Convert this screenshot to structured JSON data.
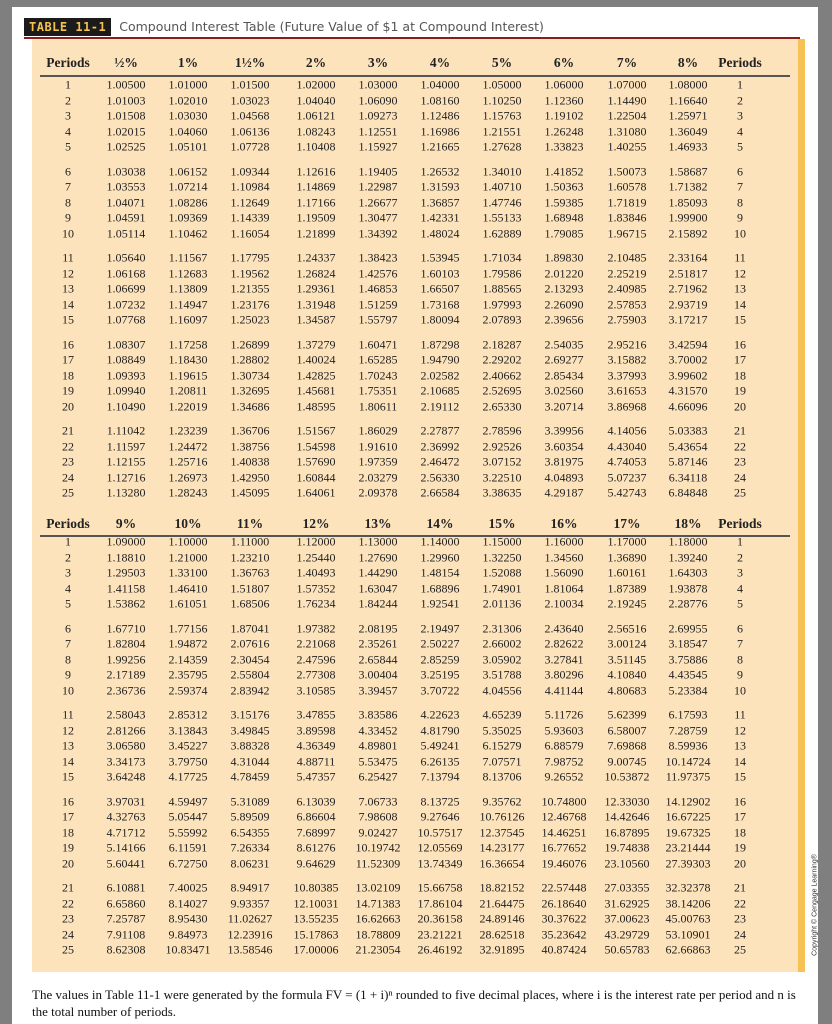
{
  "header": {
    "label": "TABLE 11-1",
    "title": "Compound Interest Table (Future Value of $1 at Compound Interest)"
  },
  "colors": {
    "cream": "#fde3bc",
    "accent_strip": "#f6c255",
    "rule": "#8c1c1c",
    "label_bg": "#1b1b1b",
    "label_text": "#f3c24f"
  },
  "sections": [
    {
      "columns": [
        "Periods",
        "½%",
        "1%",
        "1½%",
        "2%",
        "3%",
        "4%",
        "5%",
        "6%",
        "7%",
        "8%",
        "Periods"
      ],
      "rows": [
        [
          "1",
          "1.00500",
          "1.01000",
          "1.01500",
          "1.02000",
          "1.03000",
          "1.04000",
          "1.05000",
          "1.06000",
          "1.07000",
          "1.08000",
          "1"
        ],
        [
          "2",
          "1.01003",
          "1.02010",
          "1.03023",
          "1.04040",
          "1.06090",
          "1.08160",
          "1.10250",
          "1.12360",
          "1.14490",
          "1.16640",
          "2"
        ],
        [
          "3",
          "1.01508",
          "1.03030",
          "1.04568",
          "1.06121",
          "1.09273",
          "1.12486",
          "1.15763",
          "1.19102",
          "1.22504",
          "1.25971",
          "3"
        ],
        [
          "4",
          "1.02015",
          "1.04060",
          "1.06136",
          "1.08243",
          "1.12551",
          "1.16986",
          "1.21551",
          "1.26248",
          "1.31080",
          "1.36049",
          "4"
        ],
        [
          "5",
          "1.02525",
          "1.05101",
          "1.07728",
          "1.10408",
          "1.15927",
          "1.21665",
          "1.27628",
          "1.33823",
          "1.40255",
          "1.46933",
          "5"
        ],
        [
          "6",
          "1.03038",
          "1.06152",
          "1.09344",
          "1.12616",
          "1.19405",
          "1.26532",
          "1.34010",
          "1.41852",
          "1.50073",
          "1.58687",
          "6"
        ],
        [
          "7",
          "1.03553",
          "1.07214",
          "1.10984",
          "1.14869",
          "1.22987",
          "1.31593",
          "1.40710",
          "1.50363",
          "1.60578",
          "1.71382",
          "7"
        ],
        [
          "8",
          "1.04071",
          "1.08286",
          "1.12649",
          "1.17166",
          "1.26677",
          "1.36857",
          "1.47746",
          "1.59385",
          "1.71819",
          "1.85093",
          "8"
        ],
        [
          "9",
          "1.04591",
          "1.09369",
          "1.14339",
          "1.19509",
          "1.30477",
          "1.42331",
          "1.55133",
          "1.68948",
          "1.83846",
          "1.99900",
          "9"
        ],
        [
          "10",
          "1.05114",
          "1.10462",
          "1.16054",
          "1.21899",
          "1.34392",
          "1.48024",
          "1.62889",
          "1.79085",
          "1.96715",
          "2.15892",
          "10"
        ],
        [
          "11",
          "1.05640",
          "1.11567",
          "1.17795",
          "1.24337",
          "1.38423",
          "1.53945",
          "1.71034",
          "1.89830",
          "2.10485",
          "2.33164",
          "11"
        ],
        [
          "12",
          "1.06168",
          "1.12683",
          "1.19562",
          "1.26824",
          "1.42576",
          "1.60103",
          "1.79586",
          "2.01220",
          "2.25219",
          "2.51817",
          "12"
        ],
        [
          "13",
          "1.06699",
          "1.13809",
          "1.21355",
          "1.29361",
          "1.46853",
          "1.66507",
          "1.88565",
          "2.13293",
          "2.40985",
          "2.71962",
          "13"
        ],
        [
          "14",
          "1.07232",
          "1.14947",
          "1.23176",
          "1.31948",
          "1.51259",
          "1.73168",
          "1.97993",
          "2.26090",
          "2.57853",
          "2.93719",
          "14"
        ],
        [
          "15",
          "1.07768",
          "1.16097",
          "1.25023",
          "1.34587",
          "1.55797",
          "1.80094",
          "2.07893",
          "2.39656",
          "2.75903",
          "3.17217",
          "15"
        ],
        [
          "16",
          "1.08307",
          "1.17258",
          "1.26899",
          "1.37279",
          "1.60471",
          "1.87298",
          "2.18287",
          "2.54035",
          "2.95216",
          "3.42594",
          "16"
        ],
        [
          "17",
          "1.08849",
          "1.18430",
          "1.28802",
          "1.40024",
          "1.65285",
          "1.94790",
          "2.29202",
          "2.69277",
          "3.15882",
          "3.70002",
          "17"
        ],
        [
          "18",
          "1.09393",
          "1.19615",
          "1.30734",
          "1.42825",
          "1.70243",
          "2.02582",
          "2.40662",
          "2.85434",
          "3.37993",
          "3.99602",
          "18"
        ],
        [
          "19",
          "1.09940",
          "1.20811",
          "1.32695",
          "1.45681",
          "1.75351",
          "2.10685",
          "2.52695",
          "3.02560",
          "3.61653",
          "4.31570",
          "19"
        ],
        [
          "20",
          "1.10490",
          "1.22019",
          "1.34686",
          "1.48595",
          "1.80611",
          "2.19112",
          "2.65330",
          "3.20714",
          "3.86968",
          "4.66096",
          "20"
        ],
        [
          "21",
          "1.11042",
          "1.23239",
          "1.36706",
          "1.51567",
          "1.86029",
          "2.27877",
          "2.78596",
          "3.39956",
          "4.14056",
          "5.03383",
          "21"
        ],
        [
          "22",
          "1.11597",
          "1.24472",
          "1.38756",
          "1.54598",
          "1.91610",
          "2.36992",
          "2.92526",
          "3.60354",
          "4.43040",
          "5.43654",
          "22"
        ],
        [
          "23",
          "1.12155",
          "1.25716",
          "1.40838",
          "1.57690",
          "1.97359",
          "2.46472",
          "3.07152",
          "3.81975",
          "4.74053",
          "5.87146",
          "23"
        ],
        [
          "24",
          "1.12716",
          "1.26973",
          "1.42950",
          "1.60844",
          "2.03279",
          "2.56330",
          "3.22510",
          "4.04893",
          "5.07237",
          "6.34118",
          "24"
        ],
        [
          "25",
          "1.13280",
          "1.28243",
          "1.45095",
          "1.64061",
          "2.09378",
          "2.66584",
          "3.38635",
          "4.29187",
          "5.42743",
          "6.84848",
          "25"
        ]
      ]
    },
    {
      "columns": [
        "Periods",
        "9%",
        "10%",
        "11%",
        "12%",
        "13%",
        "14%",
        "15%",
        "16%",
        "17%",
        "18%",
        "Periods"
      ],
      "rows": [
        [
          "1",
          "1.09000",
          "1.10000",
          "1.11000",
          "1.12000",
          "1.13000",
          "1.14000",
          "1.15000",
          "1.16000",
          "1.17000",
          "1.18000",
          "1"
        ],
        [
          "2",
          "1.18810",
          "1.21000",
          "1.23210",
          "1.25440",
          "1.27690",
          "1.29960",
          "1.32250",
          "1.34560",
          "1.36890",
          "1.39240",
          "2"
        ],
        [
          "3",
          "1.29503",
          "1.33100",
          "1.36763",
          "1.40493",
          "1.44290",
          "1.48154",
          "1.52088",
          "1.56090",
          "1.60161",
          "1.64303",
          "3"
        ],
        [
          "4",
          "1.41158",
          "1.46410",
          "1.51807",
          "1.57352",
          "1.63047",
          "1.68896",
          "1.74901",
          "1.81064",
          "1.87389",
          "1.93878",
          "4"
        ],
        [
          "5",
          "1.53862",
          "1.61051",
          "1.68506",
          "1.76234",
          "1.84244",
          "1.92541",
          "2.01136",
          "2.10034",
          "2.19245",
          "2.28776",
          "5"
        ],
        [
          "6",
          "1.67710",
          "1.77156",
          "1.87041",
          "1.97382",
          "2.08195",
          "2.19497",
          "2.31306",
          "2.43640",
          "2.56516",
          "2.69955",
          "6"
        ],
        [
          "7",
          "1.82804",
          "1.94872",
          "2.07616",
          "2.21068",
          "2.35261",
          "2.50227",
          "2.66002",
          "2.82622",
          "3.00124",
          "3.18547",
          "7"
        ],
        [
          "8",
          "1.99256",
          "2.14359",
          "2.30454",
          "2.47596",
          "2.65844",
          "2.85259",
          "3.05902",
          "3.27841",
          "3.51145",
          "3.75886",
          "8"
        ],
        [
          "9",
          "2.17189",
          "2.35795",
          "2.55804",
          "2.77308",
          "3.00404",
          "3.25195",
          "3.51788",
          "3.80296",
          "4.10840",
          "4.43545",
          "9"
        ],
        [
          "10",
          "2.36736",
          "2.59374",
          "2.83942",
          "3.10585",
          "3.39457",
          "3.70722",
          "4.04556",
          "4.41144",
          "4.80683",
          "5.23384",
          "10"
        ],
        [
          "11",
          "2.58043",
          "2.85312",
          "3.15176",
          "3.47855",
          "3.83586",
          "4.22623",
          "4.65239",
          "5.11726",
          "5.62399",
          "6.17593",
          "11"
        ],
        [
          "12",
          "2.81266",
          "3.13843",
          "3.49845",
          "3.89598",
          "4.33452",
          "4.81790",
          "5.35025",
          "5.93603",
          "6.58007",
          "7.28759",
          "12"
        ],
        [
          "13",
          "3.06580",
          "3.45227",
          "3.88328",
          "4.36349",
          "4.89801",
          "5.49241",
          "6.15279",
          "6.88579",
          "7.69868",
          "8.59936",
          "13"
        ],
        [
          "14",
          "3.34173",
          "3.79750",
          "4.31044",
          "4.88711",
          "5.53475",
          "6.26135",
          "7.07571",
          "7.98752",
          "9.00745",
          "10.14724",
          "14"
        ],
        [
          "15",
          "3.64248",
          "4.17725",
          "4.78459",
          "5.47357",
          "6.25427",
          "7.13794",
          "8.13706",
          "9.26552",
          "10.53872",
          "11.97375",
          "15"
        ],
        [
          "16",
          "3.97031",
          "4.59497",
          "5.31089",
          "6.13039",
          "7.06733",
          "8.13725",
          "9.35762",
          "10.74800",
          "12.33030",
          "14.12902",
          "16"
        ],
        [
          "17",
          "4.32763",
          "5.05447",
          "5.89509",
          "6.86604",
          "7.98608",
          "9.27646",
          "10.76126",
          "12.46768",
          "14.42646",
          "16.67225",
          "17"
        ],
        [
          "18",
          "4.71712",
          "5.55992",
          "6.54355",
          "7.68997",
          "9.02427",
          "10.57517",
          "12.37545",
          "14.46251",
          "16.87895",
          "19.67325",
          "18"
        ],
        [
          "19",
          "5.14166",
          "6.11591",
          "7.26334",
          "8.61276",
          "10.19742",
          "12.05569",
          "14.23177",
          "16.77652",
          "19.74838",
          "23.21444",
          "19"
        ],
        [
          "20",
          "5.60441",
          "6.72750",
          "8.06231",
          "9.64629",
          "11.52309",
          "13.74349",
          "16.36654",
          "19.46076",
          "23.10560",
          "27.39303",
          "20"
        ],
        [
          "21",
          "6.10881",
          "7.40025",
          "8.94917",
          "10.80385",
          "13.02109",
          "15.66758",
          "18.82152",
          "22.57448",
          "27.03355",
          "32.32378",
          "21"
        ],
        [
          "22",
          "6.65860",
          "8.14027",
          "9.93357",
          "12.10031",
          "14.71383",
          "17.86104",
          "21.64475",
          "26.18640",
          "31.62925",
          "38.14206",
          "22"
        ],
        [
          "23",
          "7.25787",
          "8.95430",
          "11.02627",
          "13.55235",
          "16.62663",
          "20.36158",
          "24.89146",
          "30.37622",
          "37.00623",
          "45.00763",
          "23"
        ],
        [
          "24",
          "7.91108",
          "9.84973",
          "12.23916",
          "15.17863",
          "18.78809",
          "23.21221",
          "28.62518",
          "35.23642",
          "43.29729",
          "53.10901",
          "24"
        ],
        [
          "25",
          "8.62308",
          "10.83471",
          "13.58546",
          "17.00006",
          "21.23054",
          "26.46192",
          "32.91895",
          "40.87424",
          "50.65783",
          "62.66863",
          "25"
        ]
      ]
    }
  ],
  "footnote": "The values in Table 11-1 were generated by the formula FV = (1 + i)ⁿ rounded to five decimal places, where i is the interest rate per period and n is the total number of periods.",
  "copyright": "Copyright © Cengage Learning®"
}
